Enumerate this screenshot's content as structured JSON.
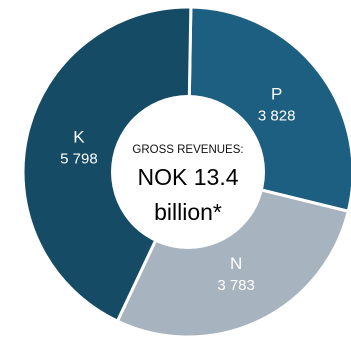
{
  "chart_data": {
    "type": "pie",
    "variant": "donut",
    "categories": [
      "P",
      "N",
      "K"
    ],
    "values": [
      3828,
      3783,
      5798
    ],
    "value_labels": [
      "3 828",
      "3 783",
      "5 798"
    ],
    "colors": [
      "#1d5f80",
      "#a7b3be",
      "#154b64"
    ],
    "center": {
      "caption": "GROSS REVENUES:",
      "line1": "NOK 13.4",
      "line2": "billion*"
    }
  }
}
